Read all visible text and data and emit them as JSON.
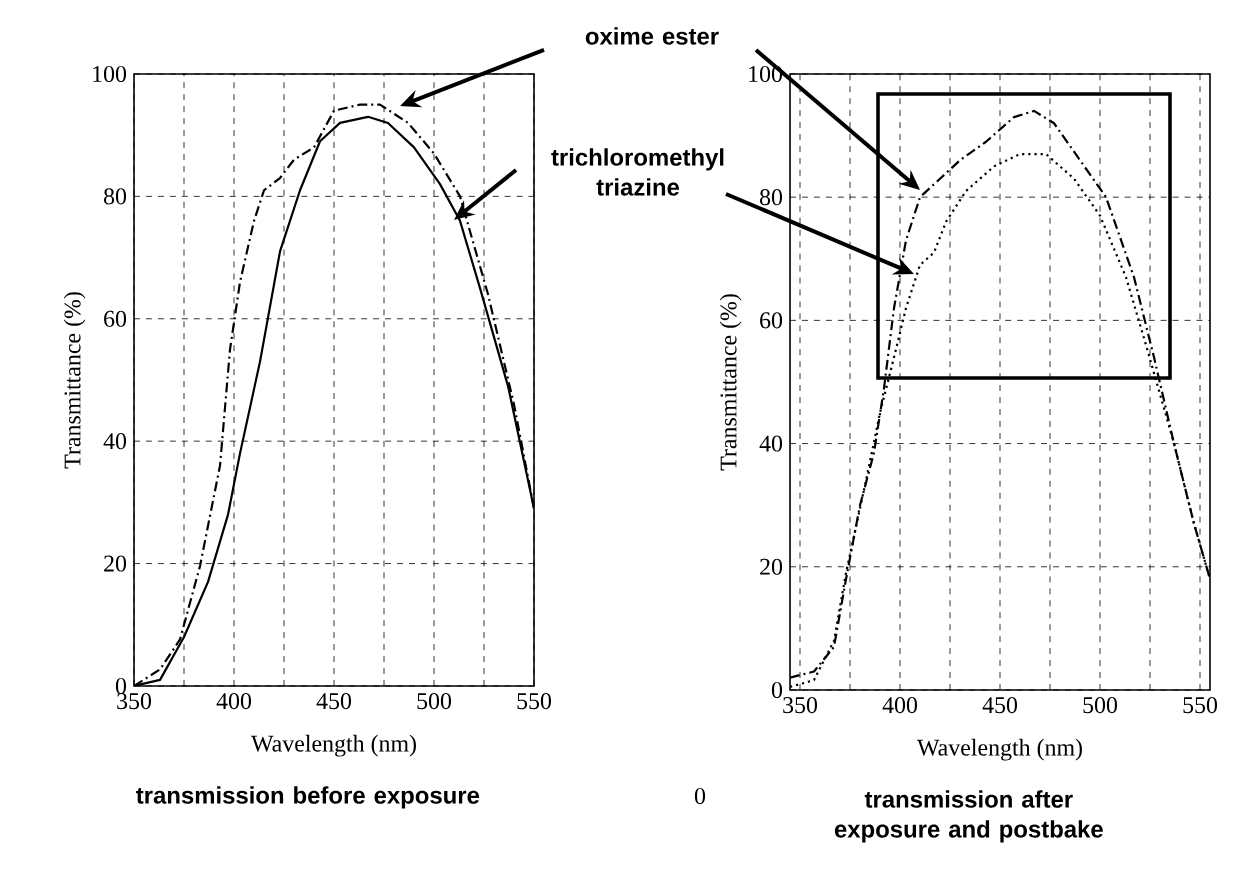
{
  "chart_data": [
    {
      "type": "line",
      "title": "transmission before exposure",
      "xlabel": "Wavelength (nm)",
      "ylabel": "Transmittance (%)",
      "xlim": [
        350,
        550
      ],
      "ylim": [
        0,
        100
      ],
      "xticks": [
        350,
        {
          "value": 375,
          "label": null
        },
        400,
        {
          "value": 425,
          "label": null
        },
        450,
        {
          "value": 475,
          "label": null
        },
        500,
        {
          "value": 525,
          "label": null
        },
        550
      ],
      "yticks": [
        0,
        20,
        40,
        60,
        80,
        100
      ],
      "grid": true,
      "series": [
        {
          "name": "oxime ester",
          "color": "#000000",
          "line_style": "dashed",
          "x": [
            350,
            363,
            373,
            383,
            393,
            398,
            403,
            410,
            415,
            423,
            430,
            440,
            450,
            463,
            473,
            487,
            500,
            513,
            527,
            540,
            550
          ],
          "values": [
            0,
            2.7,
            7.6,
            19.6,
            36,
            55,
            66,
            76,
            81,
            83,
            86,
            88,
            94,
            95,
            95,
            92,
            87,
            80,
            64,
            46,
            29
          ]
        },
        {
          "name": "trichloromethyl triazine",
          "color": "#000000",
          "line_style": "solid",
          "x": [
            350,
            363,
            375,
            387,
            397,
            403,
            413,
            423,
            433,
            443,
            453,
            467,
            477,
            490,
            503,
            513,
            523,
            537,
            550
          ],
          "values": [
            0,
            1,
            8,
            17,
            28,
            38,
            53,
            71,
            81,
            89,
            92,
            93,
            92,
            88,
            82,
            76,
            65,
            49,
            29
          ]
        }
      ]
    },
    {
      "type": "line",
      "title": "transmission after exposure and postbake",
      "xlabel": "Wavelength (nm)",
      "ylabel": "Transmittance (%)",
      "xlim": [
        345,
        555
      ],
      "ylim": [
        0,
        100
      ],
      "xticks": [
        350,
        {
          "value": 375,
          "label": null
        },
        400,
        {
          "value": 425,
          "label": null
        },
        450,
        {
          "value": 475,
          "label": null
        },
        500,
        {
          "value": 525,
          "label": null
        },
        550
      ],
      "yticks": [
        0,
        20,
        40,
        60,
        80,
        100
      ],
      "grid": true,
      "annotations": [
        "0"
      ],
      "series": [
        {
          "color": "#000000",
          "line_style": "dashed",
          "x": [
            345,
            357,
            367,
            373,
            380,
            387,
            392,
            397,
            403,
            410,
            420,
            430,
            443,
            457,
            467,
            477,
            490,
            503,
            517,
            527,
            537,
            547,
            555
          ],
          "values": [
            2,
            3,
            7,
            18,
            30,
            38.5,
            49,
            62,
            73,
            80,
            83,
            86,
            89,
            93,
            94,
            92,
            86,
            80,
            67,
            54,
            40,
            27,
            18
          ]
        },
        {
          "color": "#000000",
          "line_style": "dotted",
          "x": [
            345,
            357,
            367,
            373,
            383,
            390,
            397,
            403,
            410,
            417,
            423,
            433,
            447,
            460,
            473,
            487,
            500,
            513,
            523,
            537,
            547,
            555
          ],
          "values": [
            0.5,
            1.6,
            8,
            19,
            34,
            45,
            54,
            62,
            69,
            71,
            76,
            81,
            85,
            87,
            87,
            83,
            77,
            67,
            56,
            40,
            27,
            18
          ]
        }
      ]
    }
  ]
}
